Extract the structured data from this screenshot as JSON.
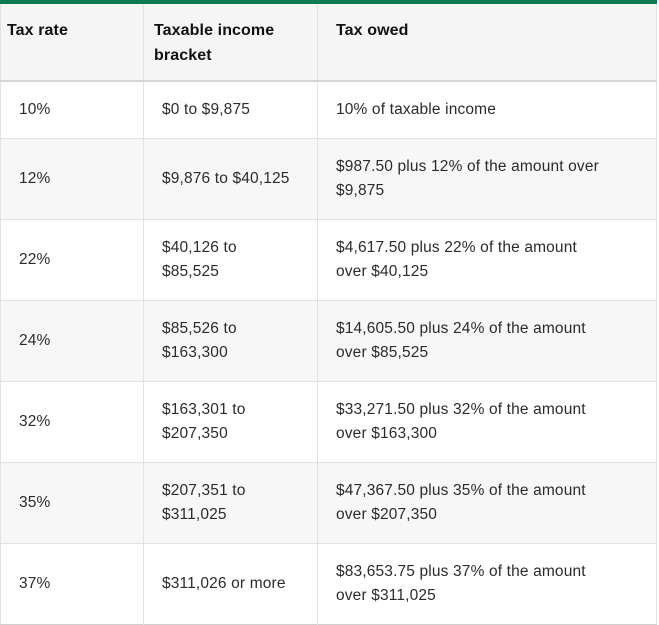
{
  "table": {
    "columns": [
      {
        "label": "Tax rate"
      },
      {
        "label": "Taxable income bracket"
      },
      {
        "label": "Tax owed"
      }
    ],
    "rows": [
      {
        "rate": "10%",
        "bracket": "$0 to $9,875",
        "owed": "10% of taxable income"
      },
      {
        "rate": "12%",
        "bracket": "$9,876 to $40,125",
        "owed": "$987.50 plus 12% of the amount over\n$9,875"
      },
      {
        "rate": "22%",
        "bracket": "$40,126 to\n$85,525",
        "owed": "$4,617.50 plus 22% of the amount\nover $40,125"
      },
      {
        "rate": "24%",
        "bracket": "$85,526 to\n$163,300",
        "owed": "$14,605.50 plus 24% of the amount\nover $85,525"
      },
      {
        "rate": "32%",
        "bracket": "$163,301 to\n$207,350",
        "owed": "$33,271.50 plus 32% of the amount\nover $163,300"
      },
      {
        "rate": "35%",
        "bracket": "$207,351 to\n$311,025",
        "owed": "$47,367.50 plus 35% of the amount\nover $207,350"
      },
      {
        "rate": "37%",
        "bracket": "$311,026 or more",
        "owed": "$83,653.75 plus 37% of the amount\nover $311,025"
      }
    ]
  },
  "colors": {
    "accent_green_top_border": "#0e7b52",
    "header_background": "#f5f5f5",
    "stripe_row_background": "#f7f7f7",
    "grid_line": "#e2e2e2",
    "text": "#2b2b2b"
  },
  "chart_data": {
    "type": "table",
    "columns": [
      "Tax rate",
      "Taxable income bracket",
      "Tax owed"
    ],
    "rows": [
      [
        "10%",
        "$0 to $9,875",
        "10% of taxable income"
      ],
      [
        "12%",
        "$9,876 to $40,125",
        "$987.50 plus 12% of the amount over $9,875"
      ],
      [
        "22%",
        "$40,126 to $85,525",
        "$4,617.50 plus 22% of the amount over $40,125"
      ],
      [
        "24%",
        "$85,526 to $163,300",
        "$14,605.50 plus 24% of the amount over $85,525"
      ],
      [
        "32%",
        "$163,301 to $207,350",
        "$33,271.50 plus 32% of the amount over $163,300"
      ],
      [
        "35%",
        "$207,351 to $311,025",
        "$47,367.50 plus 35% of the amount over $207,350"
      ],
      [
        "37%",
        "$311,026 or more",
        "$83,653.75 plus 37% of the amount over $311,025"
      ]
    ],
    "tax_rates_percent": [
      10,
      12,
      22,
      24,
      32,
      35,
      37
    ],
    "bracket_lower_bounds_usd": [
      0,
      9876,
      40126,
      85526,
      163301,
      207351,
      311026
    ],
    "bracket_upper_bounds_usd": [
      9875,
      40125,
      85525,
      163300,
      207350,
      311025,
      null
    ],
    "base_tax_owed_usd": [
      0,
      987.5,
      4617.5,
      14605.5,
      33271.5,
      47367.5,
      83653.75
    ]
  }
}
